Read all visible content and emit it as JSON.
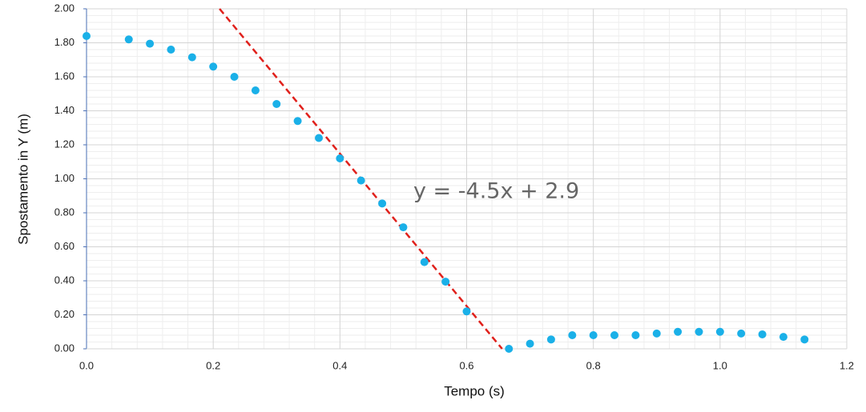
{
  "chart_data": {
    "type": "scatter",
    "xlabel": "Tempo (s)",
    "ylabel": "Spostamento in Y (m)",
    "annotation": "y = -4.5x + 2.9",
    "series": [
      {
        "color": "#1ab0e8",
        "x": [
          0,
          0.0667,
          0.1,
          0.1333,
          0.1667,
          0.2,
          0.2333,
          0.2667,
          0.3,
          0.3333,
          0.3667,
          0.4,
          0.4333,
          0.4667,
          0.5,
          0.5333,
          0.5667,
          0.6,
          0.6667,
          0.7,
          0.7333,
          0.7667,
          0.8,
          0.8333,
          0.8667,
          0.9,
          0.9333,
          0.9667,
          1.0,
          1.0333,
          1.0667,
          1.1,
          1.1333
        ],
        "values": [
          1.84,
          1.82,
          1.795,
          1.76,
          1.715,
          1.66,
          1.6,
          1.52,
          1.44,
          1.34,
          1.24,
          1.12,
          0.99,
          0.855,
          0.715,
          0.51,
          0.395,
          0.22,
          0.0,
          0.03,
          0.055,
          0.08,
          0.08,
          0.08,
          0.08,
          0.09,
          0.1,
          0.1,
          0.1,
          0.09,
          0.085,
          0.07,
          0.055
        ]
      }
    ],
    "trendline": {
      "color": "#e0201b",
      "x": [
        0.21,
        0.656
      ],
      "values": [
        2.0,
        0.0
      ]
    },
    "xlim": [
      0,
      1.2
    ],
    "xticks": [
      {
        "value": 0,
        "label": "0.0"
      },
      0.2,
      0.4,
      0.6,
      0.8,
      {
        "value": 1,
        "label": "1.0"
      },
      1.2
    ],
    "ylim": [
      0,
      2
    ],
    "yticks": [
      {
        "value": 0,
        "label": "0.00"
      },
      {
        "value": 0.2,
        "label": "0.20"
      },
      {
        "value": 0.4,
        "label": "0.40"
      },
      {
        "value": 0.6,
        "label": "0.60"
      },
      {
        "value": 0.8,
        "label": "0.80"
      },
      {
        "value": 1,
        "label": "1.00"
      },
      {
        "value": 1.2,
        "label": "1.20"
      },
      {
        "value": 1.4,
        "label": "1.40"
      },
      {
        "value": 1.6,
        "label": "1.60"
      },
      {
        "value": 1.8,
        "label": "1.80"
      },
      {
        "value": 2,
        "label": "2.00"
      }
    ],
    "grid": true
  }
}
